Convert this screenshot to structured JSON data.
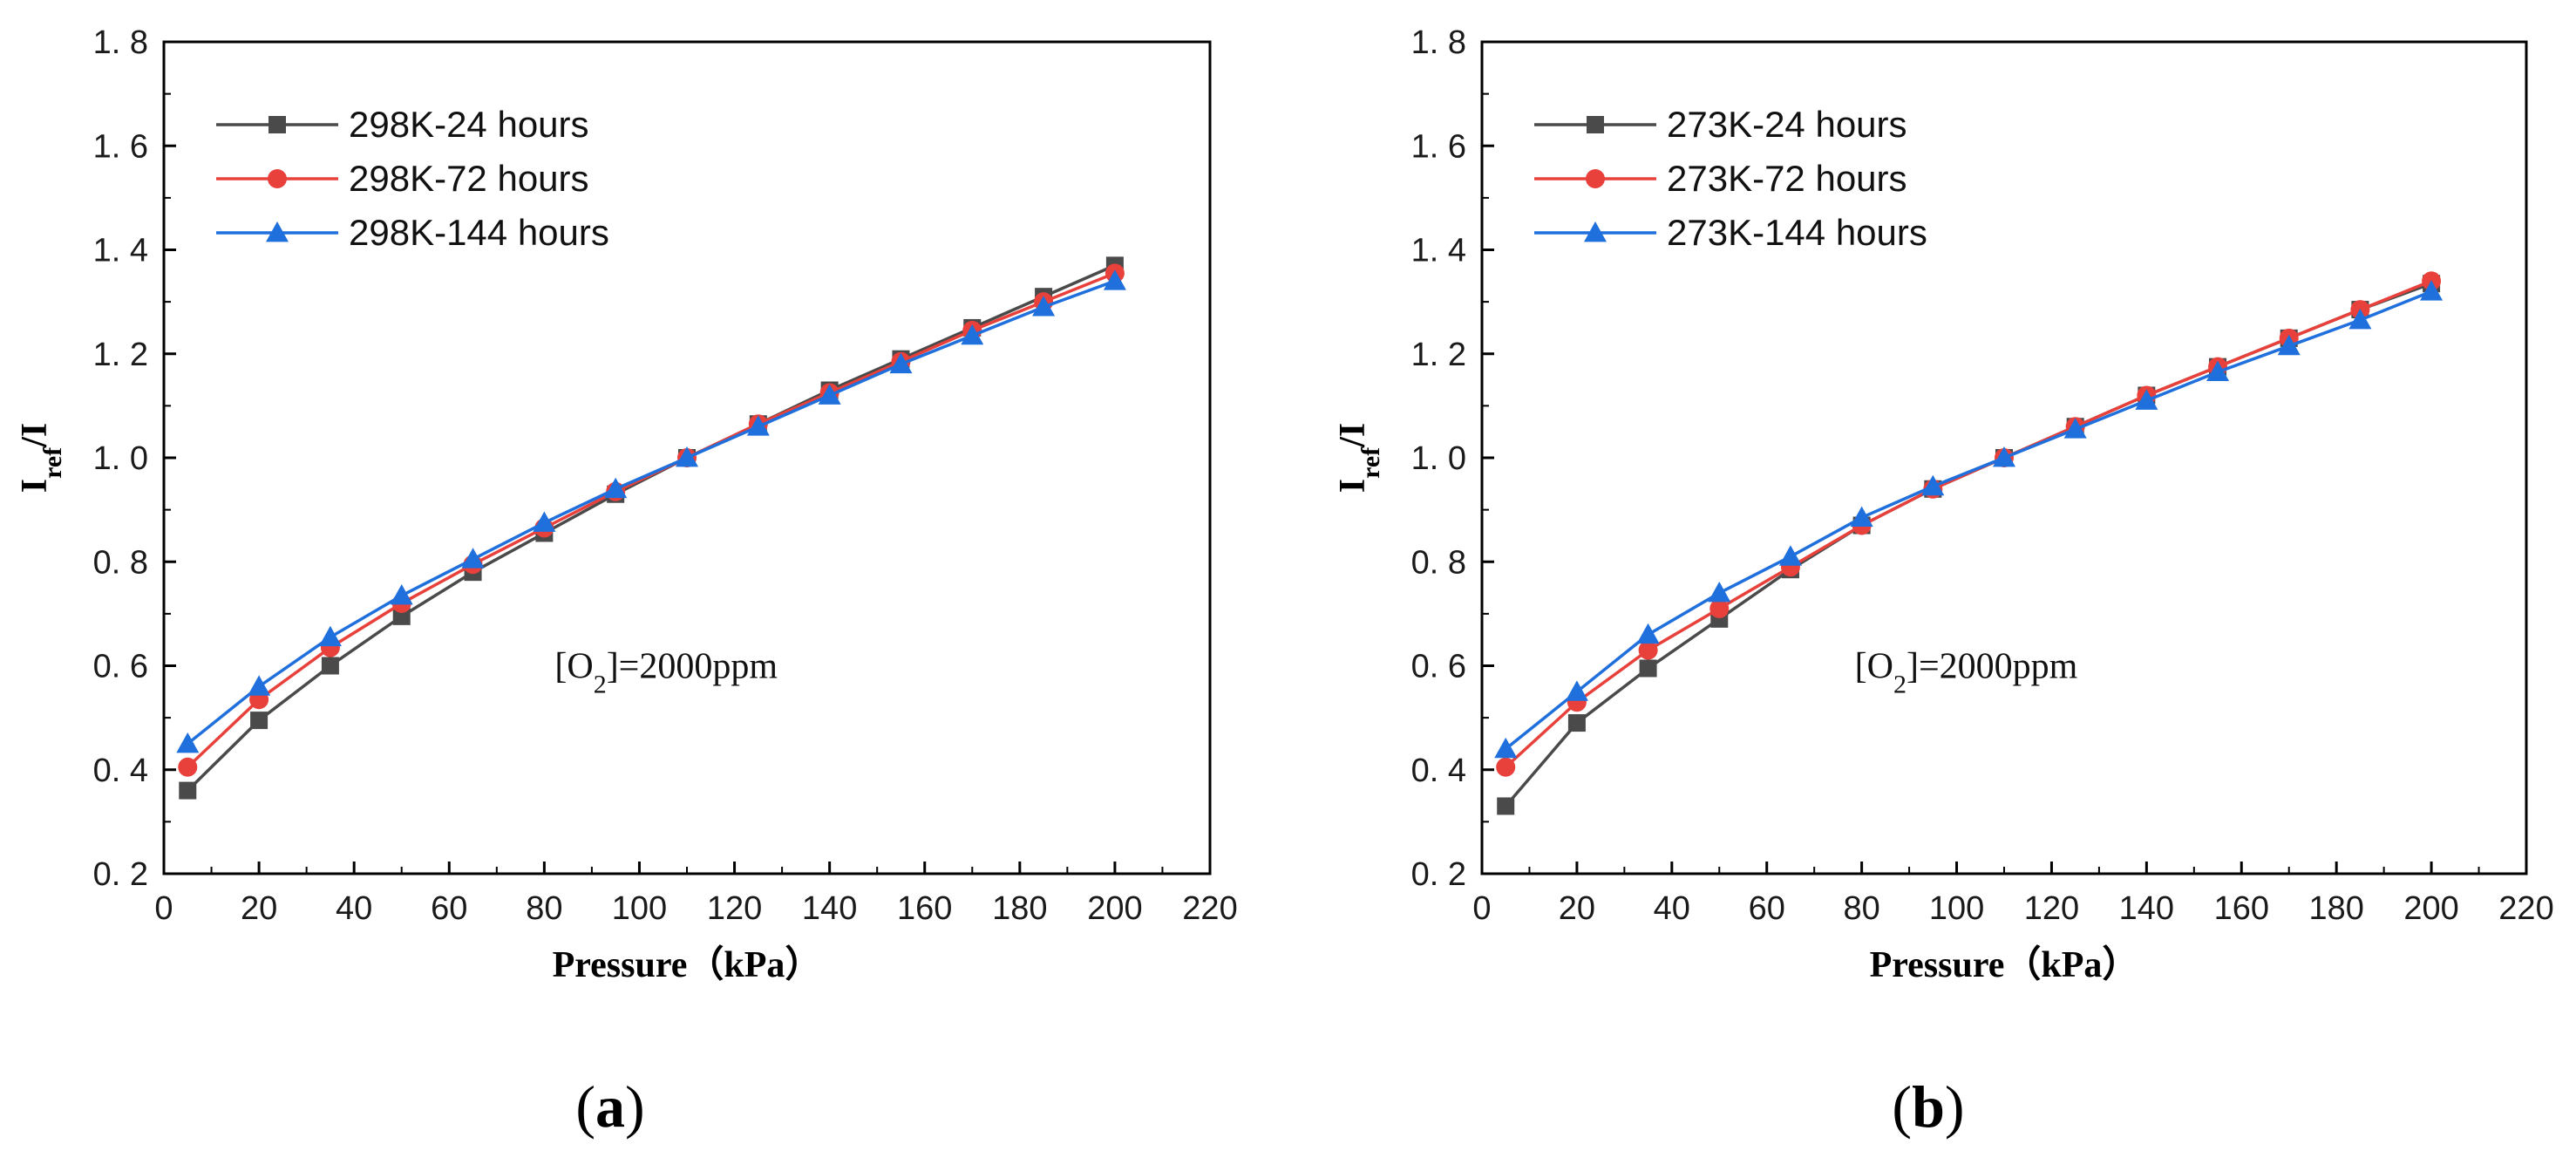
{
  "chart_data": [
    {
      "type": "line",
      "panel_label": "(a)",
      "panel_letter": "a",
      "xlabel": "Pressure（kPa）",
      "ylabel_main": "I",
      "ylabel_sub": "ref",
      "ylabel_tail": "/I",
      "xlim": [
        0,
        220
      ],
      "ylim": [
        0.2,
        1.8
      ],
      "xticks": [
        0,
        20,
        40,
        60,
        80,
        100,
        120,
        140,
        160,
        180,
        200,
        220
      ],
      "yticks": [
        0.2,
        0.4,
        0.6,
        0.8,
        1.0,
        1.2,
        1.4,
        1.6,
        1.8
      ],
      "ytick_labels": [
        "0. 2",
        "0. 4",
        "0. 6",
        "0. 8",
        "1. 0",
        "1. 2",
        "1. 4",
        "1. 6",
        "1. 8"
      ],
      "grid": false,
      "legend_position": "top-left",
      "annotation": {
        "prefix": "[O",
        "sub": "2",
        "suffix": "]=2000ppm"
      },
      "x": [
        5,
        20,
        35,
        50,
        65,
        80,
        95,
        110,
        125,
        140,
        155,
        170,
        185,
        200
      ],
      "series": [
        {
          "name": "298K-24 hours",
          "color": "#4a4a4a",
          "marker": "square",
          "values": [
            0.36,
            0.495,
            0.6,
            0.695,
            0.78,
            0.855,
            0.93,
            1.0,
            1.065,
            1.13,
            1.19,
            1.25,
            1.31,
            1.37
          ]
        },
        {
          "name": "298K-72 hours",
          "color": "#e8413c",
          "marker": "circle",
          "values": [
            0.405,
            0.535,
            0.635,
            0.72,
            0.795,
            0.865,
            0.935,
            1.0,
            1.065,
            1.125,
            1.185,
            1.245,
            1.3,
            1.355
          ]
        },
        {
          "name": "298K-144 hours",
          "color": "#1f6fdc",
          "marker": "triangle",
          "values": [
            0.45,
            0.56,
            0.655,
            0.735,
            0.805,
            0.875,
            0.94,
            1.0,
            1.06,
            1.12,
            1.18,
            1.235,
            1.29,
            1.34
          ]
        }
      ]
    },
    {
      "type": "line",
      "panel_label": "(b)",
      "panel_letter": "b",
      "xlabel": "Pressure（kPa）",
      "ylabel_main": "I",
      "ylabel_sub": "ref",
      "ylabel_tail": "/I",
      "xlim": [
        0,
        220
      ],
      "ylim": [
        0.2,
        1.8
      ],
      "xticks": [
        0,
        20,
        40,
        60,
        80,
        100,
        120,
        140,
        160,
        180,
        200,
        220
      ],
      "yticks": [
        0.2,
        0.4,
        0.6,
        0.8,
        1.0,
        1.2,
        1.4,
        1.6,
        1.8
      ],
      "ytick_labels": [
        "0. 2",
        "0. 4",
        "0. 6",
        "0. 8",
        "1. 0",
        "1. 2",
        "1. 4",
        "1. 6",
        "1. 8"
      ],
      "grid": false,
      "legend_position": "top-left",
      "annotation": {
        "prefix": "[O",
        "sub": "2",
        "suffix": "]=2000ppm"
      },
      "x": [
        5,
        20,
        35,
        50,
        65,
        80,
        95,
        110,
        125,
        140,
        155,
        170,
        185,
        200
      ],
      "series": [
        {
          "name": "273K-24 hours",
          "color": "#4a4a4a",
          "marker": "square",
          "values": [
            0.33,
            0.49,
            0.595,
            0.69,
            0.785,
            0.87,
            0.94,
            1.0,
            1.06,
            1.12,
            1.175,
            1.23,
            1.285,
            1.335
          ]
        },
        {
          "name": "273K-72 hours",
          "color": "#e8413c",
          "marker": "circle",
          "values": [
            0.405,
            0.53,
            0.63,
            0.71,
            0.79,
            0.87,
            0.94,
            1.0,
            1.06,
            1.12,
            1.175,
            1.23,
            1.285,
            1.34
          ]
        },
        {
          "name": "273K-144 hours",
          "color": "#1f6fdc",
          "marker": "triangle",
          "values": [
            0.44,
            0.55,
            0.66,
            0.74,
            0.81,
            0.885,
            0.945,
            1.0,
            1.055,
            1.11,
            1.165,
            1.215,
            1.265,
            1.32
          ]
        }
      ]
    }
  ]
}
